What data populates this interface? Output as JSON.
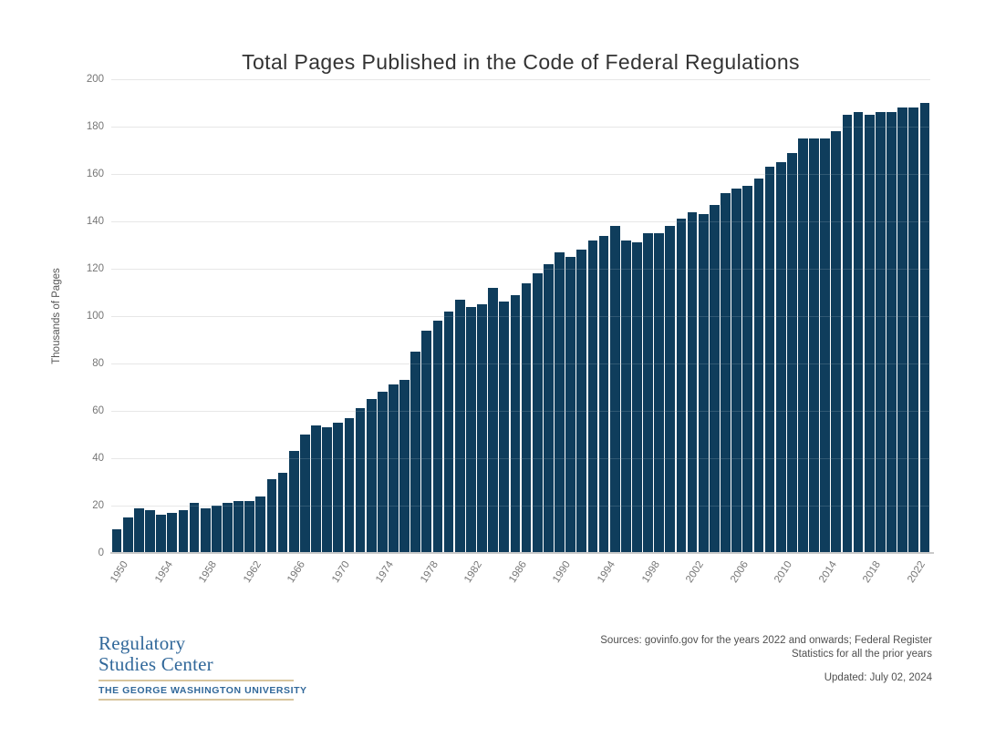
{
  "title": "Total Pages Published in the Code of Federal Regulations",
  "chart_data": {
    "type": "bar",
    "title": "Total Pages Published in the Code of Federal Regulations",
    "xlabel": "",
    "ylabel": "Thousands of Pages",
    "ylim": [
      0,
      200
    ],
    "yticks": [
      0,
      20,
      40,
      60,
      80,
      100,
      120,
      140,
      160,
      180,
      200
    ],
    "grid": "horizontal",
    "legend": "none",
    "bar_color": "#0f3d5c",
    "xtick_labels": [
      "1950",
      "1954",
      "1958",
      "1962",
      "1966",
      "1970",
      "1974",
      "1978",
      "1982",
      "1986",
      "1990",
      "1994",
      "1998",
      "2002",
      "2006",
      "2010",
      "2014",
      "2018",
      "2022"
    ],
    "x": [
      1950,
      1951,
      1952,
      1953,
      1954,
      1955,
      1956,
      1957,
      1958,
      1959,
      1960,
      1961,
      1962,
      1963,
      1964,
      1965,
      1966,
      1967,
      1968,
      1969,
      1970,
      1971,
      1972,
      1973,
      1974,
      1975,
      1976,
      1977,
      1978,
      1979,
      1980,
      1981,
      1982,
      1983,
      1984,
      1985,
      1986,
      1987,
      1988,
      1989,
      1990,
      1991,
      1992,
      1993,
      1994,
      1995,
      1996,
      1997,
      1998,
      1999,
      2000,
      2001,
      2002,
      2003,
      2004,
      2005,
      2006,
      2007,
      2008,
      2009,
      2010,
      2011,
      2012,
      2013,
      2014,
      2015,
      2016,
      2017,
      2018,
      2019,
      2020,
      2021,
      2022,
      2023
    ],
    "values": [
      10,
      15,
      19,
      18,
      16,
      17,
      18,
      21,
      19,
      20,
      21,
      22,
      22,
      24,
      31,
      34,
      43,
      50,
      54,
      53,
      55,
      57,
      61,
      65,
      68,
      71,
      73,
      85,
      94,
      98,
      102,
      107,
      104,
      105,
      112,
      106,
      109,
      114,
      118,
      122,
      127,
      125,
      128,
      132,
      134,
      138,
      132,
      131,
      135,
      135,
      138,
      141,
      144,
      143,
      147,
      152,
      154,
      155,
      158,
      163,
      165,
      169,
      175,
      175,
      175,
      178,
      185,
      186,
      185,
      186,
      186,
      188,
      188,
      190
    ]
  },
  "footer": {
    "source_line1": "Sources: govinfo.gov for the years 2022 and onwards; Federal Register",
    "source_line2": "Statistics for all the prior years",
    "updated": "Updated: July 02, 2024",
    "logo": {
      "line1": "Regulatory",
      "line2": "Studies Center",
      "university": "THE GEORGE WASHINGTON UNIVERSITY",
      "blue": "#31689a",
      "tan": "#d8c69e"
    }
  }
}
